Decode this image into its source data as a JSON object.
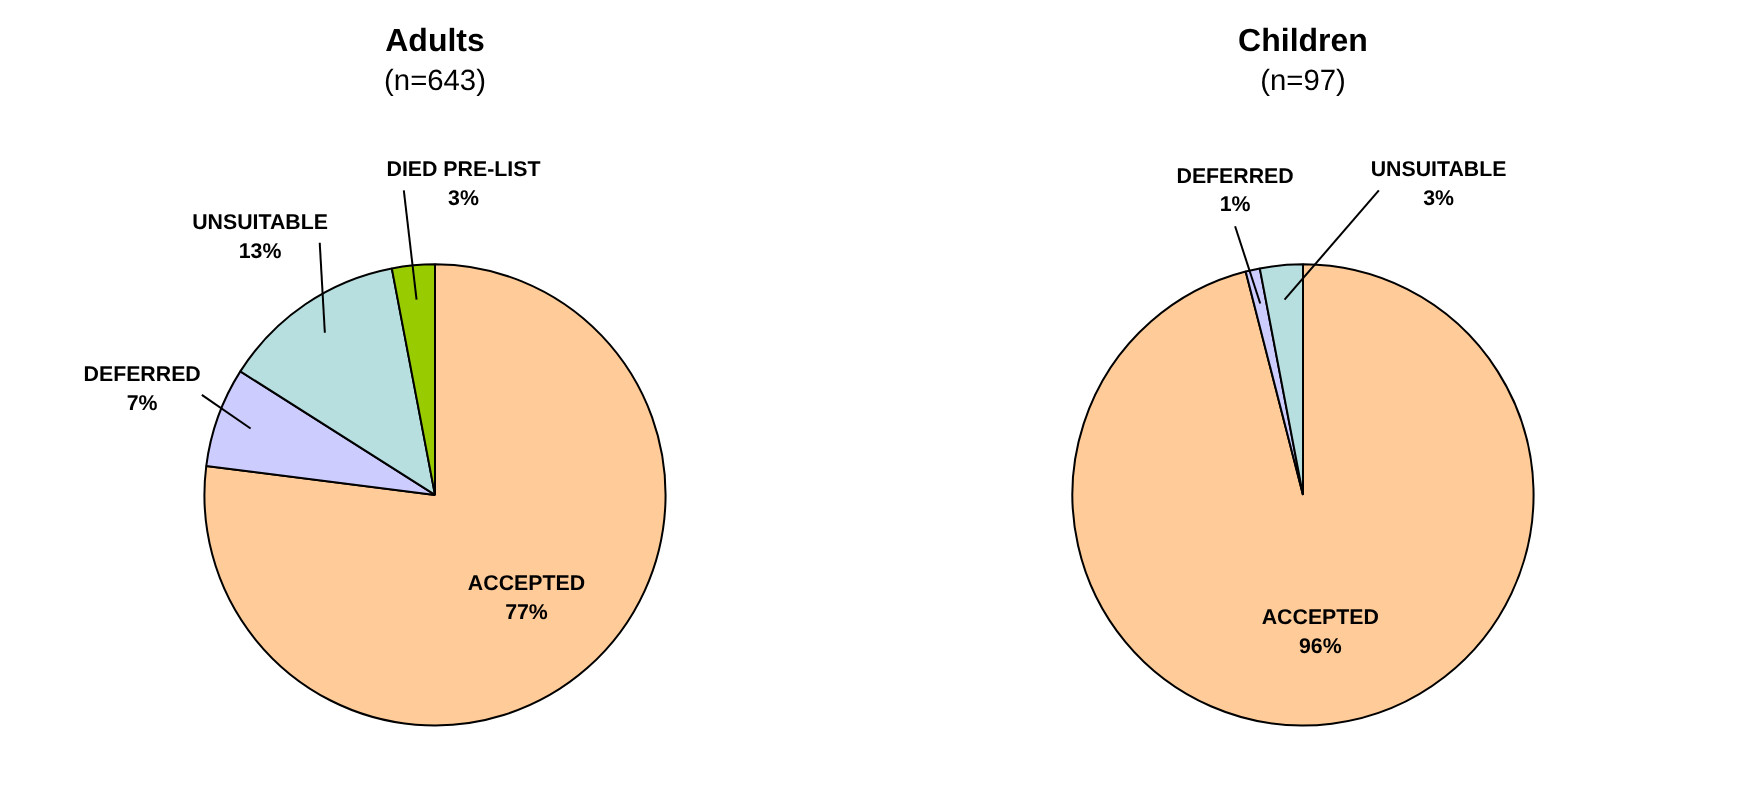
{
  "chart_data": [
    {
      "type": "pie",
      "title": "Adults",
      "subtitle": "(n=643)",
      "categories": [
        "ACCEPTED",
        "DEFERRED",
        "UNSUITABLE",
        "DIED PRE-LIST"
      ],
      "values": [
        77,
        7,
        13,
        3
      ],
      "colors": [
        "#ffcc99",
        "#ccccff",
        "#b7dfe0",
        "#99cc00"
      ],
      "value_labels": [
        "77%",
        "7%",
        "13%",
        "3%"
      ]
    },
    {
      "type": "pie",
      "title": "Children",
      "subtitle": "(n=97)",
      "categories": [
        "ACCEPTED",
        "DEFERRED",
        "UNSUITABLE"
      ],
      "values": [
        96,
        1,
        3
      ],
      "colors": [
        "#ffcc99",
        "#ccccff",
        "#b7dfe0"
      ],
      "value_labels": [
        "96%",
        "1%",
        "3%"
      ]
    }
  ]
}
